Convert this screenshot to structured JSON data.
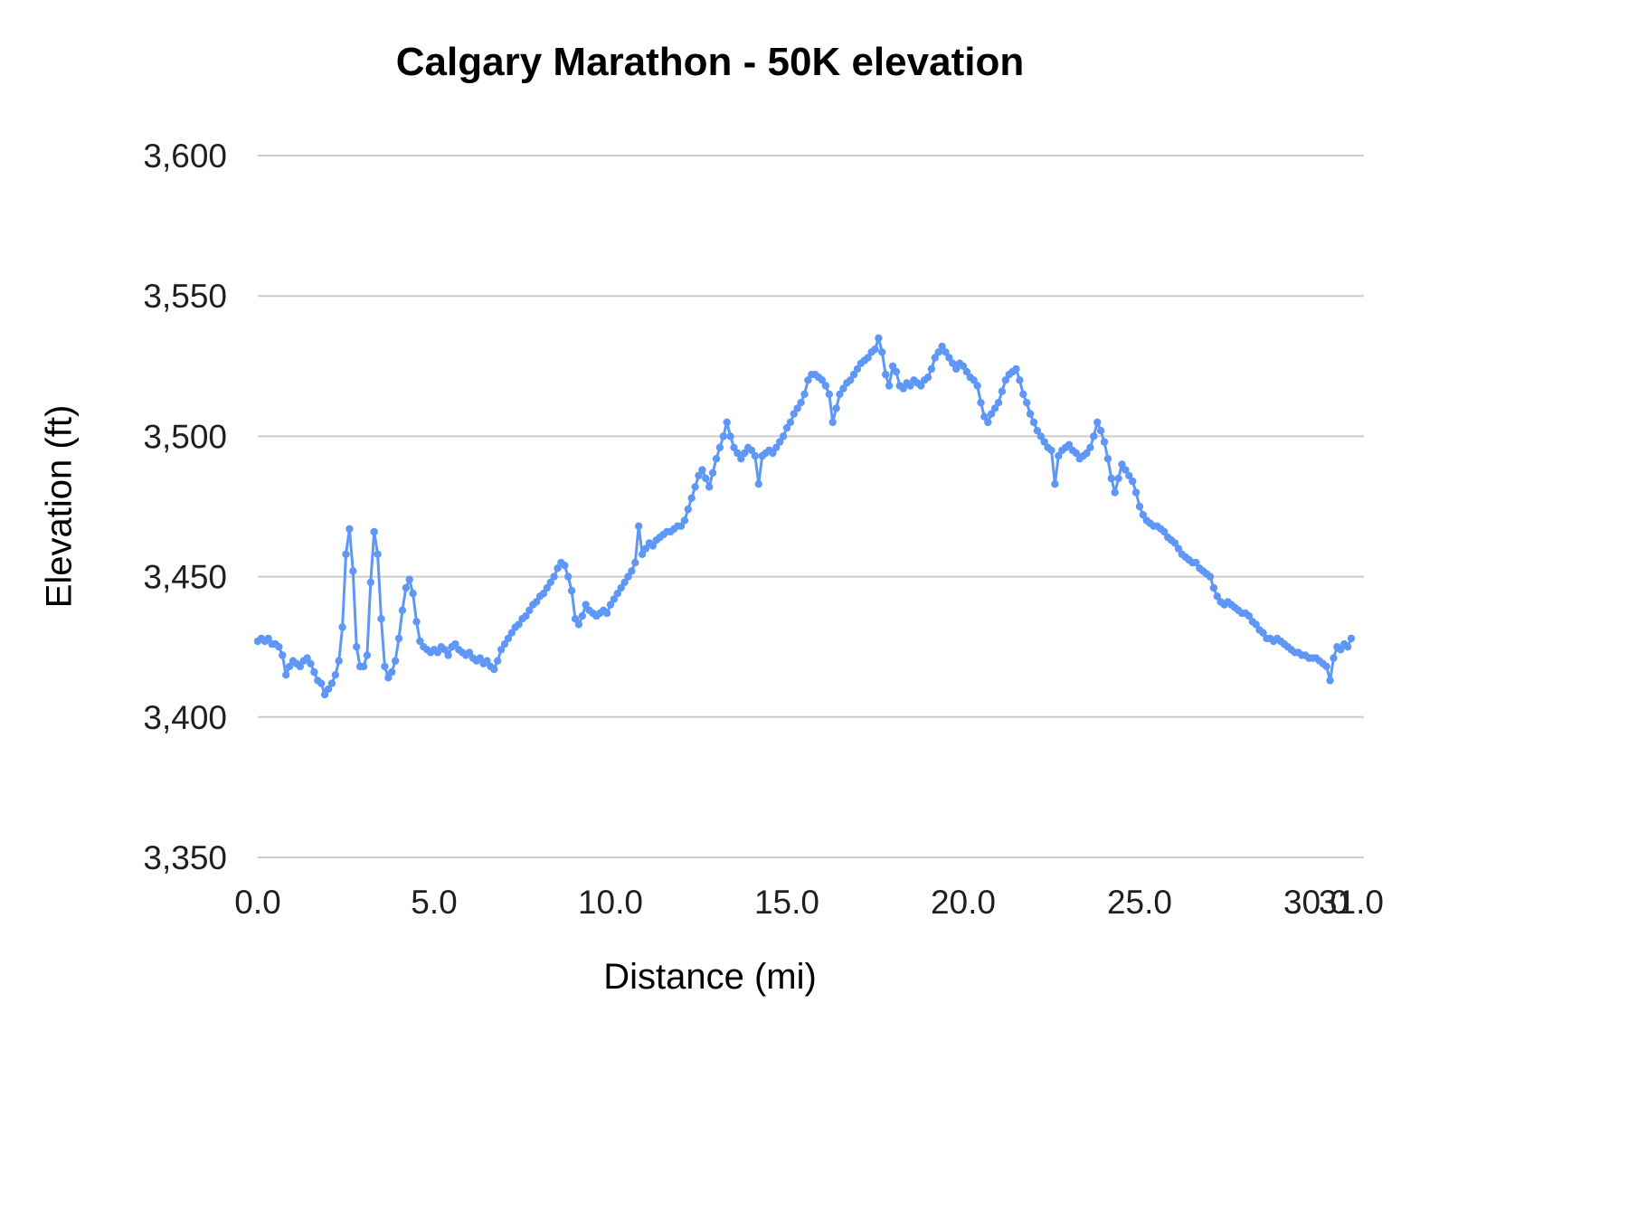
{
  "chart": {
    "title": "Calgary Marathon - 50K elevation",
    "xlabel": "Distance (mi)",
    "ylabel": "Elevation (ft)"
  },
  "colors": {
    "series": "#5e97f6",
    "gridline": "#cccccc",
    "tick_text": "#1f1f1f"
  },
  "chart_data": {
    "type": "line",
    "title": "Calgary Marathon - 50K elevation",
    "xlabel": "Distance (mi)",
    "ylabel": "Elevation (ft)",
    "legend": "none",
    "grid": "horizontal",
    "marker": "circle",
    "series_name": "Elevation",
    "series_color": "#5e97f6",
    "xlim": [
      0,
      31
    ],
    "ylim": [
      3350,
      3600
    ],
    "x_ticks": [
      0,
      5,
      10,
      15,
      20,
      25,
      30,
      31
    ],
    "x_tick_labels": [
      "0.0",
      "5.0",
      "10.0",
      "15.0",
      "20.0",
      "25.0",
      "30.0",
      "31.0"
    ],
    "y_ticks": [
      3350,
      3400,
      3450,
      3500,
      3550,
      3600
    ],
    "y_tick_labels": [
      "3,350",
      "3,400",
      "3,450",
      "3,500",
      "3,550",
      "3,600"
    ],
    "x0": 0,
    "dx": 0.1,
    "elevation_ft": [
      3427,
      3428,
      3427,
      3428,
      3426,
      3426,
      3425,
      3422,
      3415,
      3418,
      3420,
      3419,
      3418,
      3420,
      3421,
      3419,
      3416,
      3413,
      3412,
      3408,
      3410,
      3412,
      3415,
      3420,
      3432,
      3458,
      3467,
      3452,
      3425,
      3418,
      3418,
      3422,
      3448,
      3466,
      3458,
      3435,
      3418,
      3414,
      3416,
      3420,
      3428,
      3438,
      3446,
      3449,
      3444,
      3434,
      3427,
      3425,
      3424,
      3423,
      3424,
      3423,
      3425,
      3424,
      3422,
      3425,
      3426,
      3424,
      3423,
      3422,
      3423,
      3421,
      3420,
      3421,
      3419,
      3420,
      3418,
      3417,
      3420,
      3424,
      3426,
      3428,
      3430,
      3432,
      3433,
      3435,
      3436,
      3438,
      3440,
      3441,
      3443,
      3444,
      3446,
      3448,
      3450,
      3453,
      3455,
      3454,
      3450,
      3445,
      3435,
      3433,
      3436,
      3440,
      3438,
      3437,
      3436,
      3437,
      3438,
      3437,
      3440,
      3442,
      3444,
      3446,
      3448,
      3450,
      3452,
      3455,
      3468,
      3458,
      3460,
      3462,
      3461,
      3463,
      3464,
      3465,
      3466,
      3466,
      3467,
      3468,
      3468,
      3470,
      3474,
      3478,
      3482,
      3486,
      3488,
      3485,
      3482,
      3487,
      3492,
      3496,
      3500,
      3505,
      3500,
      3496,
      3494,
      3492,
      3494,
      3496,
      3495,
      3493,
      3483,
      3493,
      3494,
      3495,
      3494,
      3496,
      3498,
      3500,
      3503,
      3505,
      3508,
      3510,
      3512,
      3515,
      3520,
      3522,
      3522,
      3521,
      3520,
      3518,
      3515,
      3505,
      3510,
      3515,
      3517,
      3519,
      3520,
      3522,
      3524,
      3526,
      3527,
      3528,
      3530,
      3531,
      3535,
      3530,
      3522,
      3518,
      3525,
      3523,
      3518,
      3517,
      3519,
      3518,
      3520,
      3519,
      3518,
      3520,
      3521,
      3524,
      3528,
      3530,
      3532,
      3530,
      3528,
      3526,
      3524,
      3526,
      3525,
      3523,
      3521,
      3520,
      3518,
      3512,
      3507,
      3505,
      3508,
      3510,
      3512,
      3516,
      3520,
      3522,
      3523,
      3524,
      3520,
      3515,
      3512,
      3508,
      3505,
      3502,
      3500,
      3498,
      3496,
      3495,
      3483,
      3493,
      3495,
      3496,
      3497,
      3495,
      3494,
      3492,
      3493,
      3494,
      3496,
      3500,
      3505,
      3502,
      3498,
      3492,
      3485,
      3480,
      3485,
      3490,
      3488,
      3486,
      3484,
      3480,
      3475,
      3472,
      3470,
      3469,
      3468,
      3468,
      3467,
      3466,
      3464,
      3463,
      3462,
      3460,
      3458,
      3457,
      3456,
      3455,
      3455,
      3453,
      3452,
      3451,
      3450,
      3446,
      3443,
      3441,
      3440,
      3441,
      3440,
      3439,
      3438,
      3437,
      3437,
      3436,
      3434,
      3433,
      3431,
      3430,
      3428,
      3428,
      3427,
      3428,
      3427,
      3426,
      3425,
      3424,
      3423,
      3423,
      3422,
      3422,
      3421,
      3421,
      3421,
      3420,
      3419,
      3418,
      3413,
      3421,
      3425,
      3424,
      3426,
      3425,
      3428
    ]
  }
}
